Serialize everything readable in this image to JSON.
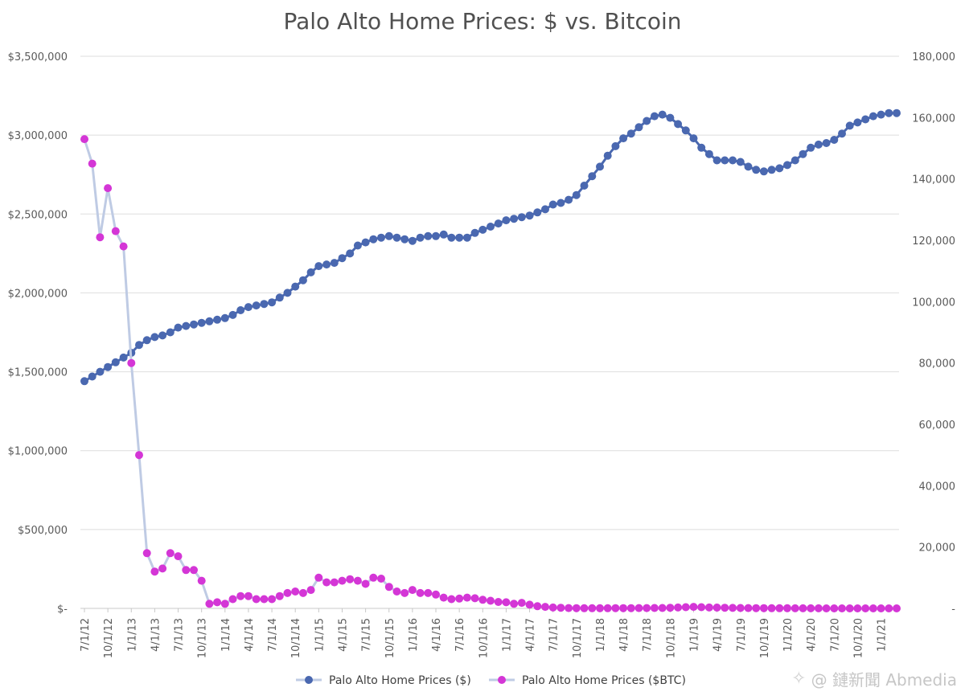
{
  "watermark": {
    "text": "@ 鏈新聞 Abmedia",
    "icon": "binance-diamond-icon"
  },
  "chart_data": {
    "type": "line",
    "title": "Palo Alto Home Prices: $ vs. Bitcoin",
    "xlabel": "",
    "ylabel_left": "",
    "ylabel_right": "",
    "grid": true,
    "legend_position": "bottom",
    "x_tick_labels": [
      "7/1/12",
      "10/1/12",
      "1/1/13",
      "4/1/13",
      "7/1/13",
      "10/1/13",
      "1/1/14",
      "4/1/14",
      "7/1/14",
      "10/1/14",
      "1/1/15",
      "4/1/15",
      "7/1/15",
      "10/1/15",
      "1/1/16",
      "4/1/16",
      "7/1/16",
      "10/1/16",
      "1/1/17",
      "4/1/17",
      "7/1/17",
      "10/1/17",
      "1/1/18",
      "4/1/18",
      "7/1/18",
      "10/1/18",
      "1/1/19",
      "4/1/19",
      "7/1/19",
      "10/1/19",
      "1/1/20",
      "4/1/20",
      "7/1/20",
      "10/1/20",
      "1/1/21"
    ],
    "y_left": {
      "min": 0,
      "max": 3500000,
      "step": 500000,
      "tick_labels": [
        "$-",
        "$500,000",
        "$1,000,000",
        "$1,500,000",
        "$2,000,000",
        "$2,500,000",
        "$3,000,000",
        "$3,500,000"
      ]
    },
    "y_right": {
      "min": 0,
      "max": 180000,
      "step": 20000,
      "tick_labels": [
        "-",
        "20,000",
        "40,000",
        "60,000",
        "80,000",
        "100,000",
        "120,000",
        "140,000",
        "160,000",
        "180,000"
      ]
    },
    "series": [
      {
        "name": "Palo Alto Home Prices ($)",
        "axis": "left",
        "color": "#4a68b0",
        "line_color": "#4a68b0",
        "values": [
          1440000,
          1470000,
          1500000,
          1530000,
          1560000,
          1590000,
          1620000,
          1670000,
          1700000,
          1720000,
          1730000,
          1750000,
          1780000,
          1790000,
          1800000,
          1810000,
          1820000,
          1830000,
          1840000,
          1860000,
          1890000,
          1910000,
          1920000,
          1930000,
          1940000,
          1970000,
          2000000,
          2040000,
          2080000,
          2130000,
          2170000,
          2180000,
          2190000,
          2220000,
          2250000,
          2300000,
          2320000,
          2340000,
          2350000,
          2360000,
          2350000,
          2340000,
          2330000,
          2350000,
          2360000,
          2360000,
          2370000,
          2350000,
          2350000,
          2350000,
          2380000,
          2400000,
          2420000,
          2440000,
          2460000,
          2470000,
          2480000,
          2490000,
          2510000,
          2530000,
          2560000,
          2570000,
          2590000,
          2620000,
          2680000,
          2740000,
          2800000,
          2870000,
          2930000,
          2980000,
          3010000,
          3050000,
          3090000,
          3120000,
          3130000,
          3110000,
          3070000,
          3030000,
          2980000,
          2920000,
          2880000,
          2840000,
          2840000,
          2840000,
          2830000,
          2800000,
          2780000,
          2770000,
          2780000,
          2790000,
          2810000,
          2840000,
          2880000,
          2920000,
          2940000,
          2950000,
          2970000,
          3010000,
          3060000,
          3080000,
          3100000,
          3120000,
          3130000,
          3140000,
          3140000
        ]
      },
      {
        "name": "Palo Alto Home Prices ($BTC)",
        "axis": "right",
        "color": "#d436d6",
        "line_color": "#bfcbe4",
        "values": [
          153000,
          145000,
          121000,
          137000,
          123000,
          118000,
          80000,
          50000,
          18000,
          12000,
          13000,
          18000,
          17000,
          12500,
          12500,
          9000,
          1500,
          2000,
          1500,
          3000,
          4000,
          4000,
          3000,
          3000,
          3000,
          4000,
          5000,
          5500,
          5000,
          6000,
          10000,
          8500,
          8500,
          9000,
          9500,
          9000,
          8000,
          10000,
          9700,
          7000,
          5500,
          5000,
          6000,
          5000,
          5000,
          4500,
          3500,
          3000,
          3200,
          3500,
          3300,
          2800,
          2500,
          2100,
          2000,
          1500,
          1800,
          1200,
          700,
          500,
          300,
          200,
          100,
          80,
          60,
          50,
          50,
          60,
          70,
          80,
          90,
          100,
          110,
          120,
          130,
          200,
          300,
          400,
          500,
          400,
          300,
          250,
          200,
          150,
          120,
          100,
          80,
          70,
          60,
          50,
          40,
          30,
          20,
          20,
          15,
          10,
          8,
          6,
          5,
          4,
          3,
          2,
          1,
          0,
          0
        ]
      }
    ]
  }
}
